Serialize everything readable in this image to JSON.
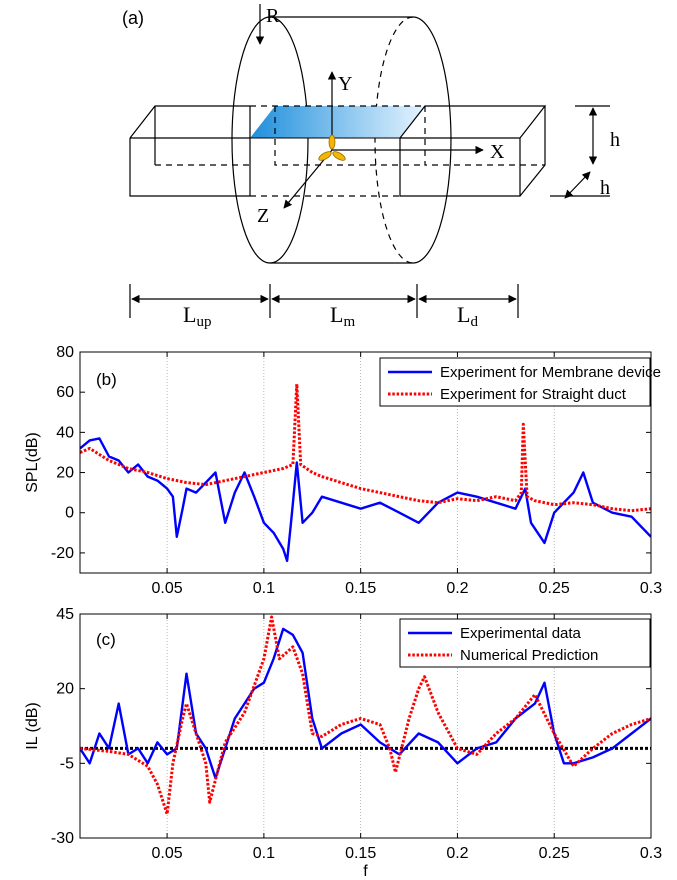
{
  "diagram": {
    "panel_label": "(a)",
    "labels": {
      "R": "R",
      "Y": "Y",
      "X": "X",
      "Z": "Z",
      "h_vertical": "h",
      "h_depth": "h"
    },
    "dimensions": [
      {
        "main": "L",
        "sub": "up"
      },
      {
        "main": "L",
        "sub": "m"
      },
      {
        "main": "L",
        "sub": "d"
      }
    ],
    "membrane_color": "#3aa6e8"
  },
  "chart_data": [
    {
      "type": "line",
      "panel_label": "(b)",
      "ylabel": "SPL(dB)",
      "xlabel": "",
      "xlim": [
        0.005,
        0.3
      ],
      "ylim": [
        -30,
        80
      ],
      "x_ticks": [
        0.05,
        0.1,
        0.15,
        0.2,
        0.25,
        0.3
      ],
      "y_ticks": [
        -20,
        0,
        20,
        40,
        60,
        80
      ],
      "grid": "vertical-dotted",
      "legend": "top-right",
      "series": [
        {
          "name": "Experiment for Membrane device",
          "color": "#0000ff",
          "style": "solid",
          "points": [
            [
              0.005,
              32
            ],
            [
              0.01,
              36
            ],
            [
              0.015,
              37
            ],
            [
              0.02,
              28
            ],
            [
              0.025,
              26
            ],
            [
              0.03,
              20
            ],
            [
              0.035,
              24
            ],
            [
              0.04,
              18
            ],
            [
              0.045,
              16
            ],
            [
              0.05,
              12
            ],
            [
              0.053,
              8
            ],
            [
              0.055,
              -12
            ],
            [
              0.058,
              2
            ],
            [
              0.06,
              12
            ],
            [
              0.065,
              10
            ],
            [
              0.07,
              15
            ],
            [
              0.075,
              20
            ],
            [
              0.078,
              5
            ],
            [
              0.08,
              -5
            ],
            [
              0.085,
              10
            ],
            [
              0.09,
              20
            ],
            [
              0.095,
              8
            ],
            [
              0.1,
              -5
            ],
            [
              0.105,
              -10
            ],
            [
              0.11,
              -18
            ],
            [
              0.112,
              -24
            ],
            [
              0.114,
              -5
            ],
            [
              0.117,
              25
            ],
            [
              0.12,
              -5
            ],
            [
              0.125,
              0
            ],
            [
              0.13,
              8
            ],
            [
              0.14,
              5
            ],
            [
              0.15,
              2
            ],
            [
              0.16,
              5
            ],
            [
              0.17,
              0
            ],
            [
              0.18,
              -5
            ],
            [
              0.19,
              5
            ],
            [
              0.2,
              10
            ],
            [
              0.21,
              8
            ],
            [
              0.22,
              5
            ],
            [
              0.23,
              2
            ],
            [
              0.235,
              12
            ],
            [
              0.238,
              -5
            ],
            [
              0.245,
              -15
            ],
            [
              0.25,
              0
            ],
            [
              0.26,
              10
            ],
            [
              0.265,
              20
            ],
            [
              0.27,
              5
            ],
            [
              0.28,
              0
            ],
            [
              0.29,
              -2
            ],
            [
              0.3,
              -12
            ]
          ]
        },
        {
          "name": "Experiment for Straight duct",
          "color": "#ff0000",
          "style": "dotted",
          "points": [
            [
              0.005,
              30
            ],
            [
              0.01,
              32
            ],
            [
              0.02,
              26
            ],
            [
              0.03,
              22
            ],
            [
              0.04,
              20
            ],
            [
              0.05,
              17
            ],
            [
              0.06,
              15
            ],
            [
              0.07,
              14
            ],
            [
              0.08,
              16
            ],
            [
              0.09,
              18
            ],
            [
              0.1,
              20
            ],
            [
              0.11,
              22
            ],
            [
              0.115,
              24
            ],
            [
              0.117,
              64
            ],
            [
              0.119,
              24
            ],
            [
              0.125,
              20
            ],
            [
              0.13,
              18
            ],
            [
              0.14,
              15
            ],
            [
              0.15,
              12
            ],
            [
              0.16,
              10
            ],
            [
              0.17,
              8
            ],
            [
              0.18,
              6
            ],
            [
              0.19,
              5
            ],
            [
              0.2,
              7
            ],
            [
              0.21,
              6
            ],
            [
              0.22,
              8
            ],
            [
              0.23,
              6
            ],
            [
              0.233,
              10
            ],
            [
              0.234,
              44
            ],
            [
              0.236,
              8
            ],
            [
              0.24,
              6
            ],
            [
              0.25,
              4
            ],
            [
              0.26,
              5
            ],
            [
              0.27,
              4
            ],
            [
              0.28,
              2
            ],
            [
              0.29,
              1
            ],
            [
              0.3,
              2
            ]
          ]
        }
      ]
    },
    {
      "type": "line",
      "panel_label": "(c)",
      "ylabel": "IL (dB)",
      "xlabel": "f",
      "xlim": [
        0.005,
        0.3
      ],
      "ylim": [
        -30,
        45
      ],
      "x_ticks": [
        0.05,
        0.1,
        0.15,
        0.2,
        0.25,
        0.3
      ],
      "y_ticks": [
        -30,
        -5,
        20,
        45
      ],
      "grid": "vertical-dotted",
      "legend": "top-right",
      "reference_line": {
        "y": 0,
        "color": "#000000"
      },
      "series": [
        {
          "name": "Experimental data",
          "color": "#0000ff",
          "style": "solid",
          "points": [
            [
              0.005,
              0
            ],
            [
              0.01,
              -5
            ],
            [
              0.015,
              5
            ],
            [
              0.02,
              0
            ],
            [
              0.025,
              15
            ],
            [
              0.03,
              -2
            ],
            [
              0.035,
              0
            ],
            [
              0.04,
              -5
            ],
            [
              0.045,
              2
            ],
            [
              0.05,
              -2
            ],
            [
              0.055,
              0
            ],
            [
              0.06,
              25
            ],
            [
              0.065,
              5
            ],
            [
              0.07,
              0
            ],
            [
              0.075,
              -10
            ],
            [
              0.08,
              0
            ],
            [
              0.085,
              10
            ],
            [
              0.09,
              15
            ],
            [
              0.095,
              20
            ],
            [
              0.1,
              22
            ],
            [
              0.105,
              30
            ],
            [
              0.11,
              40
            ],
            [
              0.115,
              38
            ],
            [
              0.12,
              32
            ],
            [
              0.125,
              10
            ],
            [
              0.13,
              0
            ],
            [
              0.14,
              5
            ],
            [
              0.15,
              8
            ],
            [
              0.16,
              2
            ],
            [
              0.17,
              -2
            ],
            [
              0.18,
              5
            ],
            [
              0.19,
              2
            ],
            [
              0.2,
              -5
            ],
            [
              0.21,
              0
            ],
            [
              0.22,
              2
            ],
            [
              0.23,
              10
            ],
            [
              0.24,
              15
            ],
            [
              0.245,
              22
            ],
            [
              0.25,
              5
            ],
            [
              0.255,
              -5
            ],
            [
              0.26,
              -5
            ],
            [
              0.27,
              -3
            ],
            [
              0.28,
              0
            ],
            [
              0.29,
              5
            ],
            [
              0.3,
              10
            ]
          ]
        },
        {
          "name": "Numerical Prediction",
          "color": "#ff0000",
          "style": "dotted",
          "points": [
            [
              0.005,
              0
            ],
            [
              0.02,
              -1
            ],
            [
              0.03,
              -2
            ],
            [
              0.04,
              -6
            ],
            [
              0.045,
              -12
            ],
            [
              0.05,
              -22
            ],
            [
              0.053,
              -5
            ],
            [
              0.058,
              10
            ],
            [
              0.06,
              15
            ],
            [
              0.065,
              5
            ],
            [
              0.07,
              -5
            ],
            [
              0.072,
              -18
            ],
            [
              0.076,
              -8
            ],
            [
              0.08,
              2
            ],
            [
              0.09,
              12
            ],
            [
              0.1,
              30
            ],
            [
              0.104,
              44
            ],
            [
              0.108,
              30
            ],
            [
              0.115,
              34
            ],
            [
              0.12,
              25
            ],
            [
              0.125,
              5
            ],
            [
              0.13,
              4
            ],
            [
              0.14,
              8
            ],
            [
              0.15,
              10
            ],
            [
              0.16,
              8
            ],
            [
              0.165,
              0
            ],
            [
              0.168,
              -8
            ],
            [
              0.175,
              10
            ],
            [
              0.18,
              20
            ],
            [
              0.183,
              24
            ],
            [
              0.19,
              12
            ],
            [
              0.2,
              0
            ],
            [
              0.21,
              -2
            ],
            [
              0.22,
              5
            ],
            [
              0.23,
              10
            ],
            [
              0.24,
              18
            ],
            [
              0.25,
              5
            ],
            [
              0.26,
              -6
            ],
            [
              0.27,
              0
            ],
            [
              0.28,
              5
            ],
            [
              0.29,
              8
            ],
            [
              0.3,
              10
            ]
          ]
        }
      ]
    }
  ]
}
